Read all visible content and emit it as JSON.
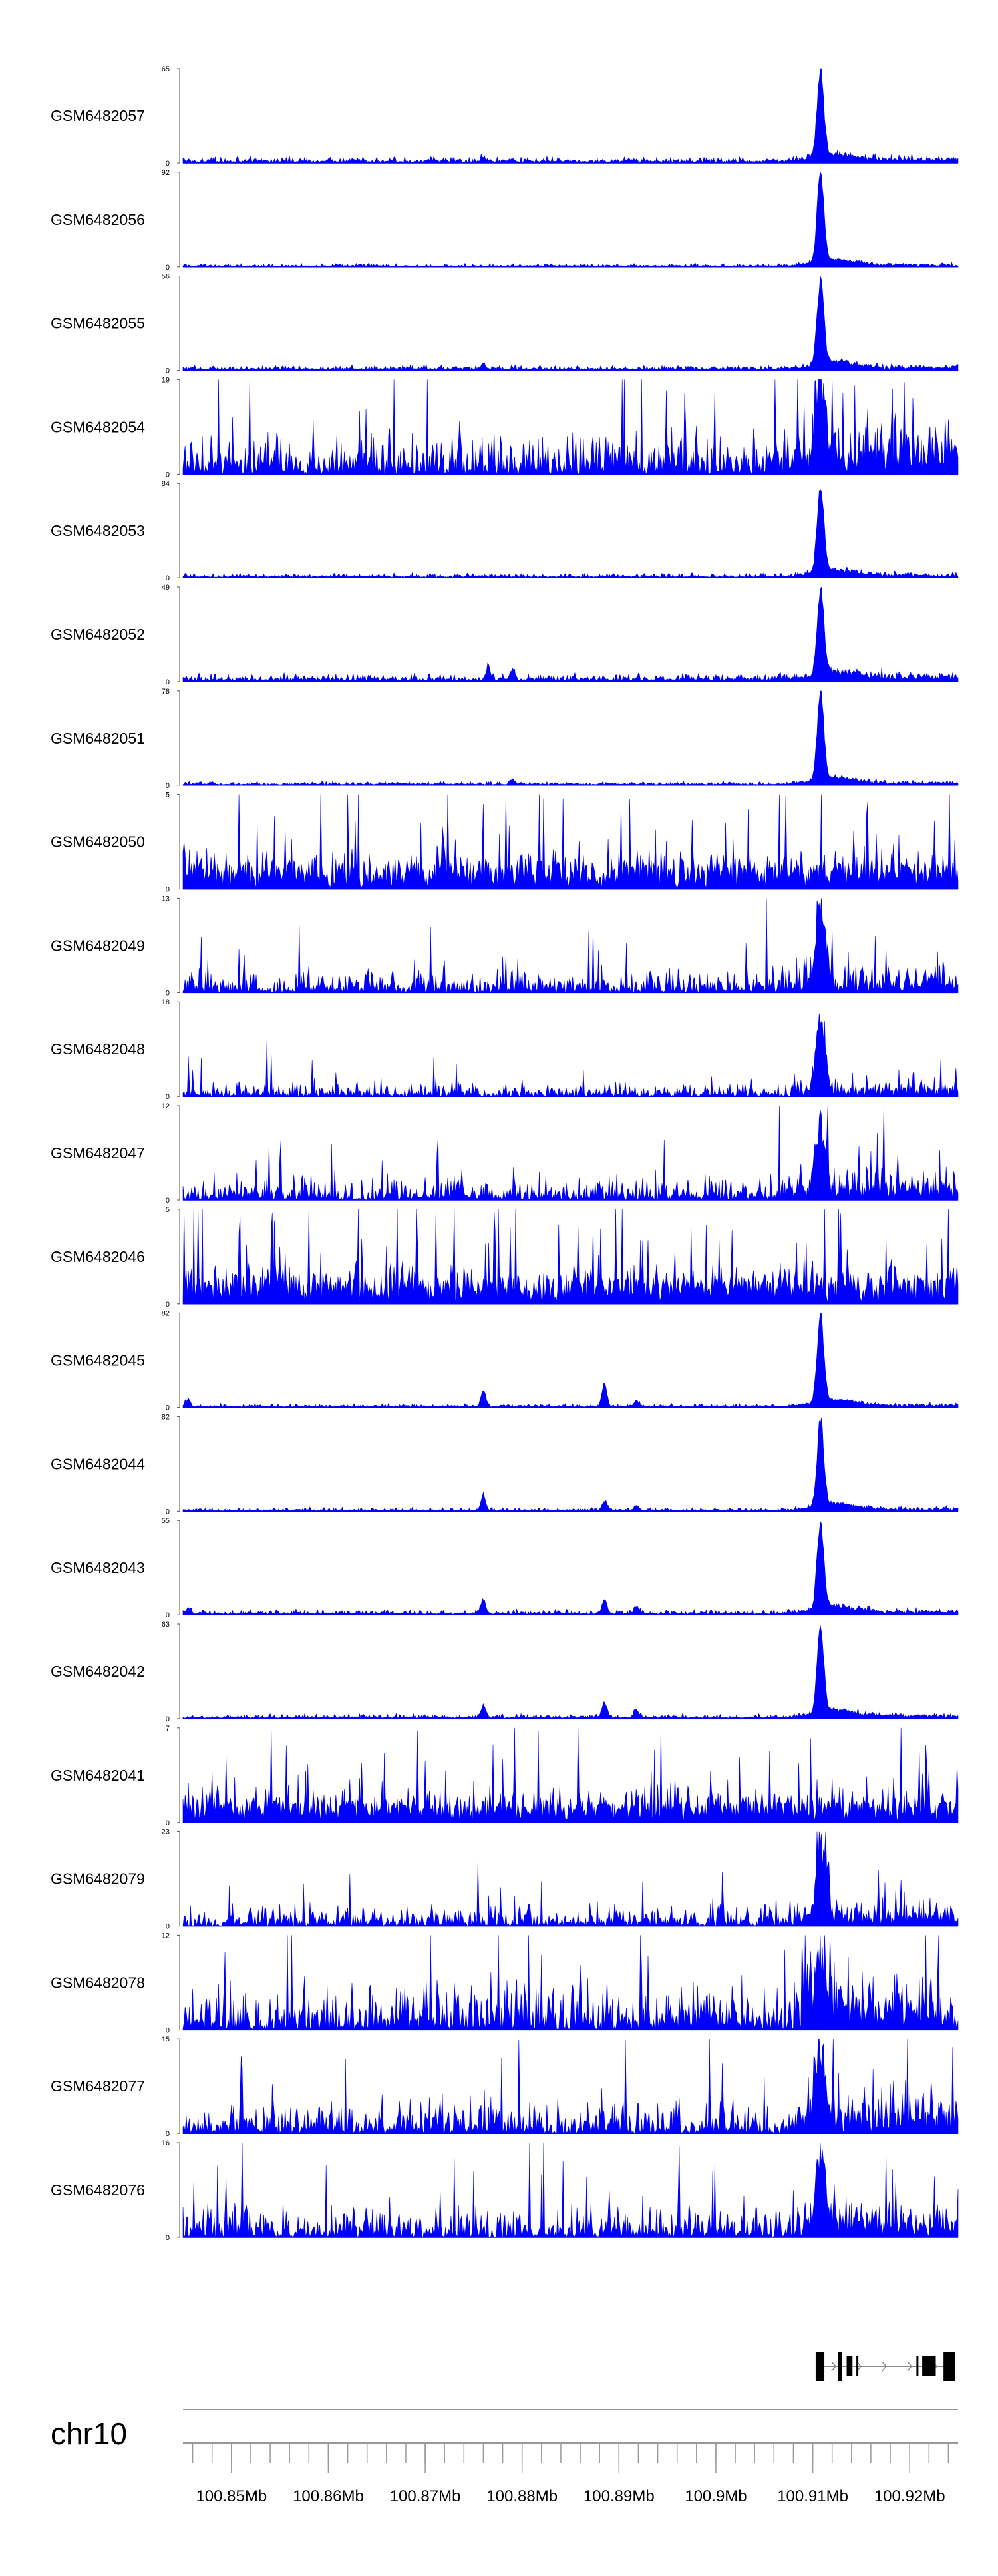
{
  "chart_data": {
    "type": "area",
    "title": "",
    "chromosome": "chr10",
    "x_unit": "bp",
    "xlim": [
      100845000,
      100925000
    ],
    "x_axis_ticks": [
      100850000,
      100860000,
      100870000,
      100880000,
      100890000,
      100900000,
      100910000,
      100920000
    ],
    "x_axis_tick_labels": [
      "100.85Mb",
      "100.86Mb",
      "100.87Mb",
      "100.88Mb",
      "100.89Mb",
      "100.9Mb",
      "100.91Mb",
      "100.92Mb"
    ],
    "minor_tick_step_bp": 2000,
    "color": "#0000ff",
    "tracks": [
      {
        "name": "GSM6482057",
        "ymax": 65,
        "kind": "peak",
        "bg": 2,
        "peak": 64,
        "small_peaks": [
          [
            100876000,
            3
          ],
          [
            100879000,
            2
          ]
        ]
      },
      {
        "name": "GSM6482056",
        "ymax": 92,
        "kind": "peak",
        "bg": 1.5,
        "peak": 91,
        "small_peaks": []
      },
      {
        "name": "GSM6482055",
        "ymax": 56,
        "kind": "peak",
        "bg": 1.5,
        "peak": 55,
        "small_peaks": [
          [
            100876000,
            3
          ]
        ]
      },
      {
        "name": "GSM6482054",
        "ymax": 19,
        "kind": "noisy",
        "bg": 4,
        "peak": 19,
        "small_peaks": []
      },
      {
        "name": "GSM6482053",
        "ymax": 84,
        "kind": "peak",
        "bg": 2,
        "peak": 82,
        "small_peaks": []
      },
      {
        "name": "GSM6482052",
        "ymax": 49,
        "kind": "peak",
        "bg": 2,
        "peak": 48,
        "small_peaks": [
          [
            100876500,
            6
          ],
          [
            100879000,
            5
          ]
        ]
      },
      {
        "name": "GSM6482051",
        "ymax": 78,
        "kind": "peak",
        "bg": 1.5,
        "peak": 77,
        "small_peaks": [
          [
            100879000,
            4
          ]
        ]
      },
      {
        "name": "GSM6482050",
        "ymax": 5,
        "kind": "noise",
        "bg": 2.5,
        "peak": 5,
        "small_peaks": []
      },
      {
        "name": "GSM6482049",
        "ymax": 13,
        "kind": "noisy",
        "bg": 1.5,
        "peak": 13,
        "small_peaks": []
      },
      {
        "name": "GSM6482048",
        "ymax": 18,
        "kind": "noisy",
        "bg": 1.2,
        "peak": 17,
        "small_peaks": []
      },
      {
        "name": "GSM6482047",
        "ymax": 12,
        "kind": "noisy",
        "bg": 1.5,
        "peak": 12,
        "small_peaks": []
      },
      {
        "name": "GSM6482046",
        "ymax": 5,
        "kind": "noise",
        "bg": 2.6,
        "peak": 5,
        "small_peaks": []
      },
      {
        "name": "GSM6482045",
        "ymax": 82,
        "kind": "peak",
        "bg": 1.5,
        "peak": 81,
        "small_peaks": [
          [
            100876000,
            14
          ],
          [
            100888500,
            20
          ],
          [
            100891800,
            5
          ],
          [
            100845500,
            6
          ]
        ]
      },
      {
        "name": "GSM6482044",
        "ymax": 82,
        "kind": "peak",
        "bg": 1.5,
        "peak": 81,
        "small_peaks": [
          [
            100876000,
            13
          ],
          [
            100888500,
            8
          ],
          [
            100891800,
            4
          ]
        ]
      },
      {
        "name": "GSM6482043",
        "ymax": 55,
        "kind": "peak",
        "bg": 1.5,
        "peak": 54,
        "small_peaks": [
          [
            100876000,
            8
          ],
          [
            100888500,
            8
          ],
          [
            100891800,
            4
          ],
          [
            100845500,
            3
          ]
        ]
      },
      {
        "name": "GSM6482042",
        "ymax": 63,
        "kind": "peak",
        "bg": 1.5,
        "peak": 62,
        "small_peaks": [
          [
            100876000,
            8
          ],
          [
            100888500,
            10
          ],
          [
            100891800,
            5
          ]
        ]
      },
      {
        "name": "GSM6482041",
        "ymax": 7,
        "kind": "noise",
        "bg": 3,
        "peak": 6,
        "small_peaks": []
      },
      {
        "name": "GSM6482079",
        "ymax": 23,
        "kind": "noisy",
        "bg": 2.5,
        "peak": 22,
        "small_peaks": []
      },
      {
        "name": "GSM6482078",
        "ymax": 12,
        "kind": "noisy",
        "bg": 2.8,
        "peak": 11,
        "small_peaks": []
      },
      {
        "name": "GSM6482077",
        "ymax": 15,
        "kind": "noisy",
        "bg": 2.5,
        "peak": 14,
        "small_peaks": []
      },
      {
        "name": "GSM6482076",
        "ymax": 16,
        "kind": "noisy",
        "bg": 2.5,
        "peak": 15,
        "small_peaks": []
      }
    ],
    "peak_position_bp": 100910800,
    "gene_model": {
      "strand": "+",
      "start": 100910300,
      "end": 100924700,
      "exons": [
        [
          100910300,
          100911200
        ],
        [
          100912600,
          100913000
        ],
        [
          100913500,
          100914100
        ],
        [
          100914500,
          100914700
        ],
        [
          100920700,
          100920900
        ],
        [
          100921300,
          100922700
        ],
        [
          100923500,
          100924700
        ]
      ]
    }
  }
}
